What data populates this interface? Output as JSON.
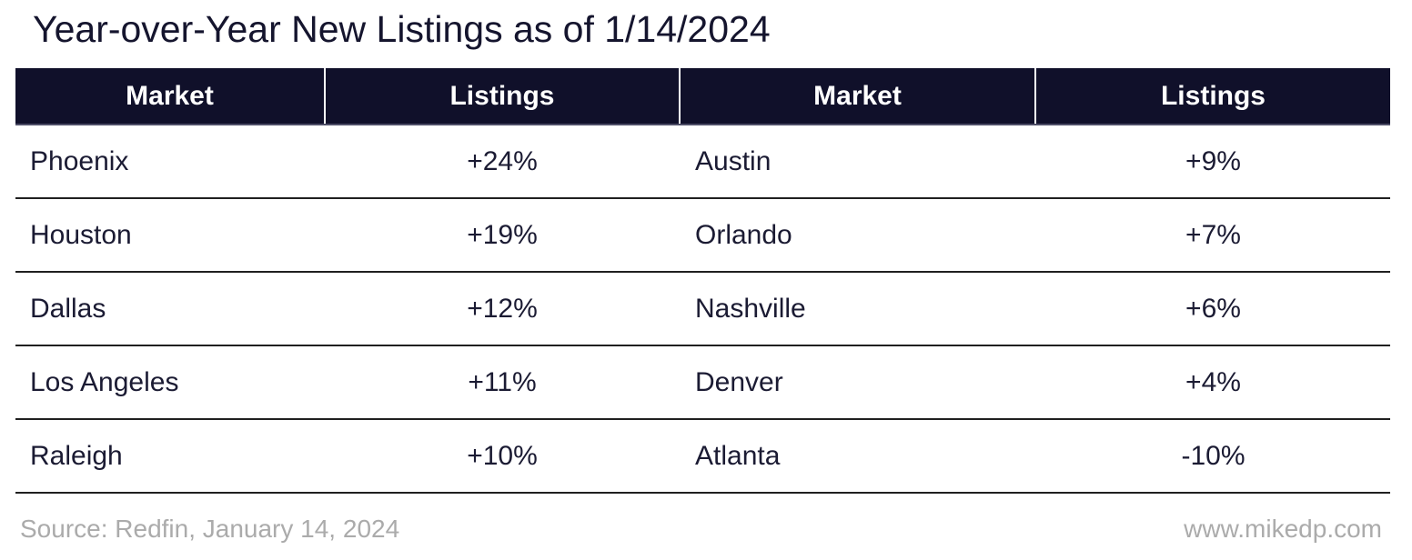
{
  "title": "Year-over-Year New Listings as of 1/14/2024",
  "table": {
    "headers": [
      "Market",
      "Listings",
      "Market",
      "Listings"
    ],
    "rows": [
      [
        "Phoenix",
        "+24%",
        "Austin",
        "+9%"
      ],
      [
        "Houston",
        "+19%",
        "Orlando",
        "+7%"
      ],
      [
        "Dallas",
        "+12%",
        "Nashville",
        "+6%"
      ],
      [
        "Los Angeles",
        "+11%",
        "Denver",
        "+4%"
      ],
      [
        "Raleigh",
        "+10%",
        "Atlanta",
        "-10%"
      ]
    ]
  },
  "footer": {
    "source": "Source: Redfin, January 14, 2024",
    "website": "www.mikedp.com"
  },
  "colors": {
    "header_bg": "#10102a",
    "header_text": "#ffffff",
    "body_text": "#1b1b33",
    "separator": "#202020",
    "footer_text": "#ababab",
    "background": "#ffffff"
  },
  "chart_data": {
    "type": "table",
    "title": "Year-over-Year New Listings as of 1/14/2024",
    "columns": [
      "Market",
      "Listings",
      "Market",
      "Listings"
    ],
    "layout": "two side-by-side market/listings column pairs, 5 rows",
    "records": [
      {
        "market": "Phoenix",
        "yoy_new_listings_pct": 24
      },
      {
        "market": "Houston",
        "yoy_new_listings_pct": 19
      },
      {
        "market": "Dallas",
        "yoy_new_listings_pct": 12
      },
      {
        "market": "Los Angeles",
        "yoy_new_listings_pct": 11
      },
      {
        "market": "Raleigh",
        "yoy_new_listings_pct": 10
      },
      {
        "market": "Austin",
        "yoy_new_listings_pct": 9
      },
      {
        "market": "Orlando",
        "yoy_new_listings_pct": 7
      },
      {
        "market": "Nashville",
        "yoy_new_listings_pct": 6
      },
      {
        "market": "Denver",
        "yoy_new_listings_pct": 4
      },
      {
        "market": "Atlanta",
        "yoy_new_listings_pct": -10
      }
    ],
    "as_of_date": "1/14/2024",
    "source": "Redfin, January 14, 2024"
  }
}
